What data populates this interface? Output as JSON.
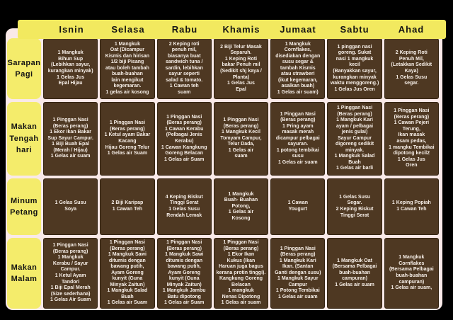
{
  "colors": {
    "background": "#000000",
    "panel_bg": "#f9e9e8",
    "header_bg": "#f2e95f",
    "label_bg": "#f4ec6b",
    "cell_bg": "#4e3822",
    "cell_text": "#f7efe8"
  },
  "header": {
    "days": [
      "Isnin",
      "Selasa",
      "Rabu",
      "Khamis",
      "Jumaat",
      "Sabtu",
      "Ahad"
    ]
  },
  "rows": [
    {
      "label": "Sarapan\nPagi",
      "cells": [
        "1 Mangkuk\nBihun Sup\n(Lebihkan sayur,\nkurangkan minyak)\n1 Gelas Jus\nEpal Hijau",
        "1 Mangkuk\nOat (Dicampur\nKismis dan hirisan\n1/2 biji Pisang\natau boleh tambah\nbuah-buahan\nlain mengikut\nkegemaran.\n1 gelas air kosong",
        "2 Keping roti\npenuh mil,\nbiasanya buat\nsandwich tuna /\nsardin, lebihkan\nsayur seperti\nsalad & tomato.\n1 Cawan teh\nsuam",
        "2 Biji Telur Masak\nSeparuh.\n1 Keping Roti\nbakar Penuh mil\n(Sedikit shj kaya /\nPlanta)\n1 Gelas Jus\nEpal",
        "1 Mangkuk\nCornflakes,\ndisediakan dengan\nsusu segar &\ntambah Kismis\natau strawberi\n(ikut kegemaran,\nasalkan buah)\n1 Gelas air suam)",
        "1 pinggan nasi\ngoreng. Sukat\nnasi 1 mangkuk\nkecil\n(Banyakkan sayur,\nkurangkan minyak\nwaktu menggoreng.)\n1 Gelas Jus Oren",
        "2 Keping Roti\nPenuh Mil,\n(Letakkan Sedikit\nKaya)\n1 Gelas Susu\nsegar."
      ]
    },
    {
      "label": "Makan\nTengah\nhari",
      "cells": [
        "1 Pinggan Nasi\n(Beras perang)\n1 Ekor Ikan Bakar\nSup Sayur Campur.\n1 Biji Buah Epal\n(Merah / Hijau)\n1 Gelas air suam",
        "1 Pinggan Nasi\n(Beras perang)\n1 Ketul ayam Bakar\nKacang\nHijau Goreng Telur\n1 Gelas air Suam",
        "1 Pinggan Nasi\n(Beras perang)\n1 Cawan Kerabu\n(Pelbagai Jenis\nKerabu)\n1 Cawan Kangkung\nGoreng Belacan\n1 Gelas air Suam",
        "1 Pinggan Nasi\n(Beras perang)\n1 Mangkuk Kecil\nTomyam Campur,\nTelur Dada,\n1 Gelas air\nsuam",
        "1 Pinggan Nasi\n(Beras perang)\n1 Pring ayam\nmasak merah\ndicampur pelbagai\nsayuran.\n1 potong tembikai\nsusu\n1 Gelas air suam",
        "1 Pinggan Nasi\n(Beras perang)\n1 Mangkuk Kari\nayam / pelbagai\njenis gulai)\nSayur Campur\ndigoreng sedikit\nminyak.\n1 Mangkuk Salad\nBuah\n1 Gelas air barli",
        "1 Pinggan Nasi\n(Beras perang)\n1 Cawan Pejeri\nTerung,\nIkan masak\nasam pedas,\n1 mangku Tembikai\ndipotong kecil2\n1 Gelas Jus\nOren"
      ]
    },
    {
      "label": "Minum\nPetang",
      "cells": [
        "1 Gelas Susu\nSoya",
        "2 Biji Karipap\n1 Cawan Teh",
        "4 Keping Biskut\nTinggi Serat\n1 Gelas Susu\nRendah Lemak",
        "1 Mangkuk\nBuah- Buahan\nPotong,\n1 Gelas air\nKosong",
        "1 Cawan\nYougurt",
        "1 Gelas Susu\nSegar.\n2 Keping Biskut\nTinggi Serat",
        "1 Keping Popiah\n1 Cawan Teh"
      ]
    },
    {
      "label": "Makan\nMalam",
      "cells": [
        "1 Pinggan Nasi\n(Beras perang)\n1 Mangkuk\nKerabu / Sayur\nCampur.\n1 Ketul Ayam\nTandori\n1 Biji Epal Merah\n(Size sederhana)\n1 Gelas Air Suam",
        "1 Pinggan Nasi\n(Beras perang)\n1 Mangkuk Sawi\nditumis dengan\nbawang putih,\nAyam Goreng\nkunyit (Guna\nMinyak Zaitun)\n1 Mangkuk Salad\nBuah\n1 Gelas air Suam",
        "1 Pinggan Nasi\n(Beras perang)\n1 Mangkuk Sawi\nditumis dengan\nbawang putih,\nAyam Goreng\nkunyit (Guna\nMinyak Zaitun)\n1 Mangkuk Jambu\nBatu dipotong\n1 Gelas air Suam",
        "1 Pinggan Nasi\n(Beras perang)\n1 Ekor Ikan\nKukus (Ikan\nHaruan juga bagus\nkerana protin tinggi).\nKangkung Goreng\nBelacan\n1 mangkuk\nNenas Dipotong\n1 Gelas air suam",
        "1 Pinggan Nasi\n(Beras perang)\n1 Mangkuk Kari\nIkan. (Santan\nGanti dengan susu)\n1 Mangkuk Sayur\nCampur\n1 Potong Tembikai\n1 Gelas air suam",
        "1 Mangkuk Oat\n(Bersama Pelbagai\nbuah-buahan\ncampuran)\n1 Gelas air suam",
        "1 Mangkuk\nCornflakes\n(Bersama Pelbagai\nbuah-buahan\ncampuran)\n1 Gelas air suam,"
      ]
    }
  ]
}
